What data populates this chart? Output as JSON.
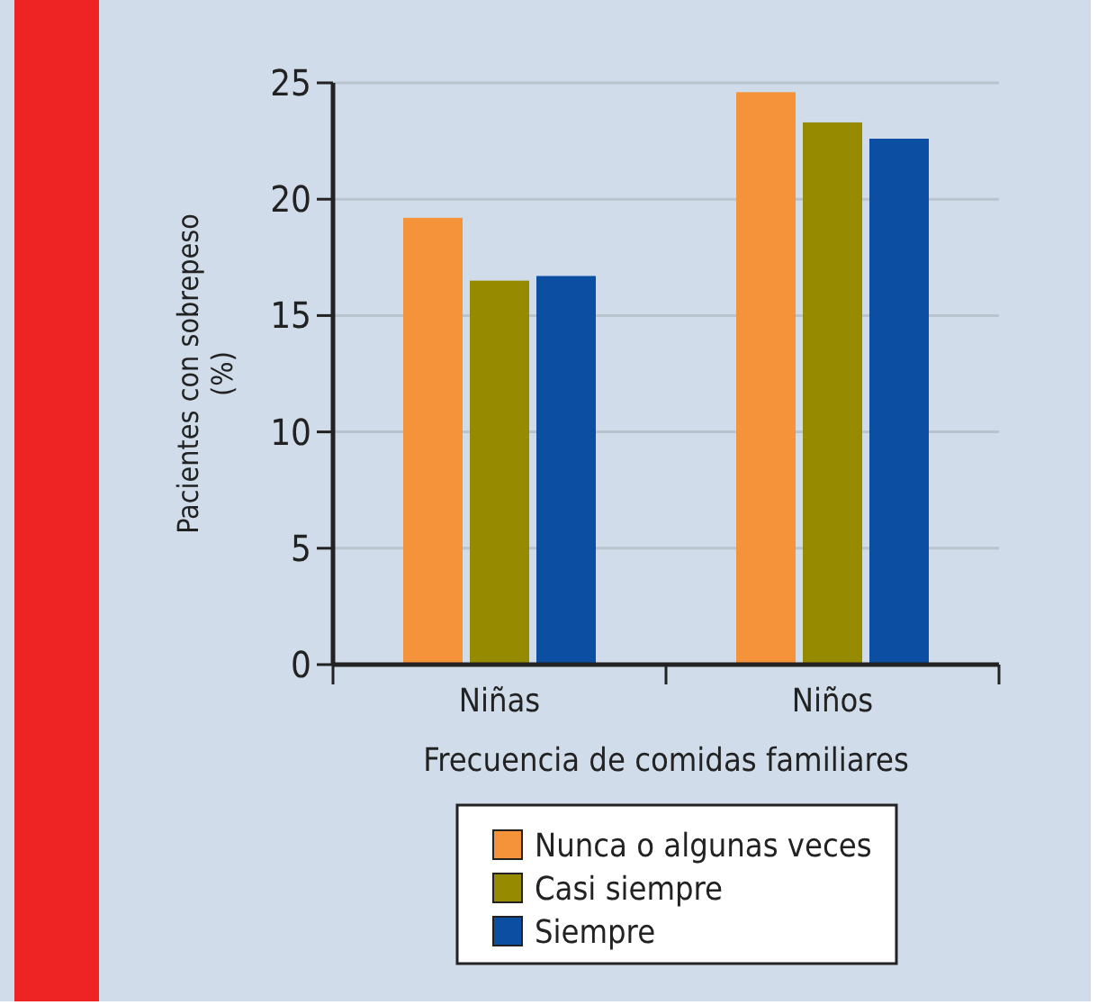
{
  "chart_data": {
    "type": "bar",
    "xlabel": "Frecuencia de comidas familiares",
    "ylabel": "Pacientes con sobrepeso (%)",
    "categories": [
      "Niñas",
      "Niños"
    ],
    "series": [
      {
        "name": "Nunca o algunas veces",
        "color": "#f5933a",
        "values": [
          19.2,
          24.6
        ]
      },
      {
        "name": "Casi siempre",
        "color": "#968b00",
        "values": [
          16.5,
          23.3
        ]
      },
      {
        "name": "Siempre",
        "color": "#0c4ea2",
        "values": [
          16.7,
          22.6
        ]
      }
    ],
    "ylim": [
      0,
      25
    ],
    "yticks": [
      0,
      5,
      10,
      15,
      20,
      25
    ],
    "grid": "y",
    "legend": "bottom"
  }
}
